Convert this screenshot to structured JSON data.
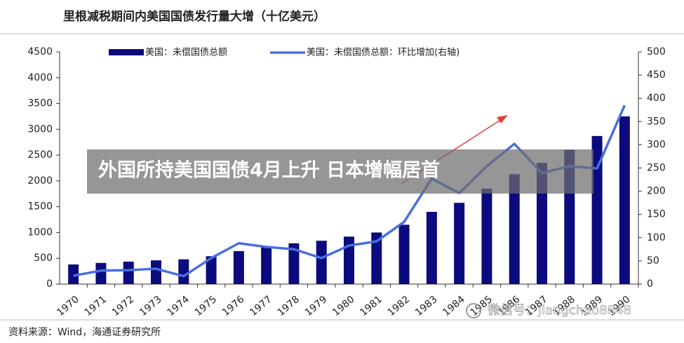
{
  "chart_data": {
    "type": "bar_line",
    "title": "里根减税期间内美国国债发行量大增（十亿美元）",
    "source": "资料来源：Wind，海通证券研究所",
    "categories": [
      "1970",
      "1971",
      "1972",
      "1973",
      "1974",
      "1975",
      "1976",
      "1977",
      "1978",
      "1979",
      "1980",
      "1981",
      "1982",
      "1983",
      "1984",
      "1985",
      "1986",
      "1987",
      "1988",
      "1989",
      "1990"
    ],
    "series": [
      {
        "name": "美国：未偿国债总额",
        "type": "bar",
        "color": "#0b0b7e",
        "values": [
          380,
          410,
          435,
          460,
          480,
          540,
          640,
          720,
          790,
          840,
          920,
          1000,
          1150,
          1400,
          1575,
          1850,
          2130,
          2350,
          2600,
          2870,
          3250
        ]
      },
      {
        "name": "美国：未偿国债总额：环比增加(右轴)",
        "type": "line",
        "axis": "y2",
        "color": "#4a6ee0",
        "values": [
          18,
          29,
          30,
          33,
          17,
          56,
          88,
          80,
          75,
          56,
          83,
          92,
          134,
          227,
          196,
          254,
          302,
          239,
          254,
          249,
          385
        ]
      }
    ],
    "ylim": [
      0,
      4500
    ],
    "yticks": [
      0,
      500,
      1000,
      1500,
      2000,
      2500,
      3000,
      3500,
      4000,
      4500
    ],
    "y2lim": [
      0,
      500
    ],
    "y2ticks": [
      0,
      50,
      100,
      150,
      200,
      250,
      300,
      350,
      400,
      450,
      500
    ]
  },
  "overlay": {
    "headline": "外国所持美国国债4月上升 日本增幅居首",
    "watermark": "微信号：jiangchao8848"
  }
}
